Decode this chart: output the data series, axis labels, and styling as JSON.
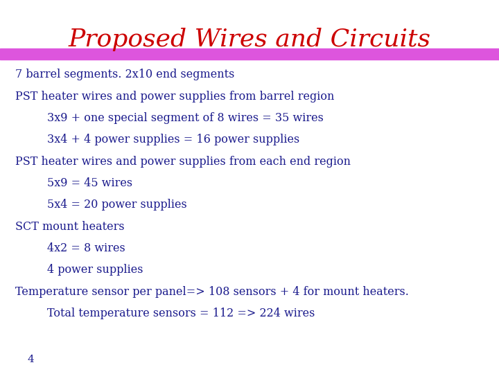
{
  "title": "Proposed Wires and Circuits",
  "title_color": "#cc0000",
  "title_fontsize": 26,
  "background_color": "#ffffff",
  "bar_color": "#dd55dd",
  "text_color": "#1a1a8c",
  "text_fontsize": 11.5,
  "page_number": "4",
  "lines": [
    {
      "text": "7 barrel segments. 2x10 end segments",
      "indent": false
    },
    {
      "text": "PST heater wires and power supplies from barrel region",
      "indent": false
    },
    {
      "text": "3x9 + one special segment of 8 wires = 35 wires",
      "indent": true
    },
    {
      "text": "3x4 + 4 power supplies = 16 power supplies",
      "indent": true
    },
    {
      "text": "PST heater wires and power supplies from each end region",
      "indent": false
    },
    {
      "text": "5x9 = 45 wires",
      "indent": true
    },
    {
      "text": "5x4 = 20 power supplies",
      "indent": true
    },
    {
      "text": "SCT mount heaters",
      "indent": false
    },
    {
      "text": "4x2 = 8 wires",
      "indent": true
    },
    {
      "text": "4 power supplies",
      "indent": true
    },
    {
      "text": "Temperature sensor per panel=> 108 sensors + 4 for mount heaters.",
      "indent": false
    },
    {
      "text": "Total temperature sensors = 112 => 224 wires",
      "indent": true
    }
  ]
}
